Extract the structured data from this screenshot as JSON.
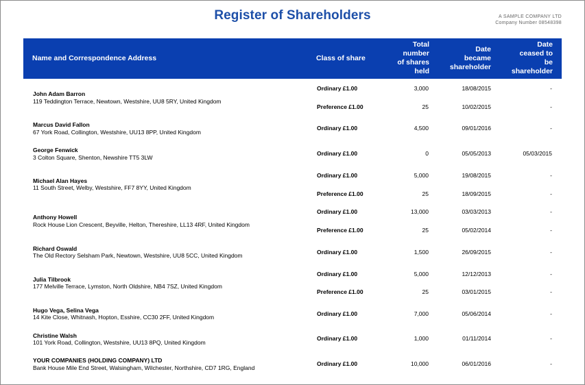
{
  "title": "Register of Shareholders",
  "company": {
    "name": "A SAMPLE COMPANY LTD",
    "number": "Company Number 08548398"
  },
  "columns": {
    "name": "Name and Correspondence Address",
    "class": "Class of share",
    "total": [
      "Total",
      "number",
      "of shares",
      "held"
    ],
    "became": [
      "Date",
      "became",
      "shareholder"
    ],
    "ceased": [
      "Date",
      "ceased to",
      "be",
      "shareholder"
    ]
  },
  "shareholders": [
    {
      "name": "John Adam Barron",
      "address": "119 Teddington Terrace, Newtown, Westshire, UU8 5RY, United Kingdom",
      "holdings": [
        {
          "class": "Ordinary £1.00",
          "total": "3,000",
          "became": "18/08/2015",
          "ceased": "-"
        },
        {
          "class": "Preference £1.00",
          "total": "25",
          "became": "10/02/2015",
          "ceased": "-"
        }
      ]
    },
    {
      "name": "Marcus David Fallon",
      "address": "67 York Road, Collington, Westshire, UU13 8PP, United Kingdom",
      "holdings": [
        {
          "class": "Ordinary £1.00",
          "total": "4,500",
          "became": "09/01/2016",
          "ceased": "-"
        }
      ]
    },
    {
      "name": "George Fenwick",
      "address": "3 Colton Square, Shenton, Newshire TT5 3LW",
      "holdings": [
        {
          "class": "Ordinary £1.00",
          "total": "0",
          "became": "05/05/2013",
          "ceased": "05/03/2015"
        }
      ]
    },
    {
      "name": "Michael Alan Hayes",
      "address": "11 South Street, Welby, Westshire, FF7 8YY, United Kingdom",
      "holdings": [
        {
          "class": "Ordinary £1.00",
          "total": "5,000",
          "became": "19/08/2015",
          "ceased": "-"
        },
        {
          "class": "Preference £1.00",
          "total": "25",
          "became": "18/09/2015",
          "ceased": "-"
        }
      ]
    },
    {
      "name": "Anthony Howell",
      "address": "Rock House Lion Crescent, Beyville, Helton, Thereshire, LL13 4RF, United Kingdom",
      "holdings": [
        {
          "class": "Ordinary £1.00",
          "total": "13,000",
          "became": "03/03/2013",
          "ceased": "-"
        },
        {
          "class": "Preference £1.00",
          "total": "25",
          "became": "05/02/2014",
          "ceased": "-"
        }
      ]
    },
    {
      "name": "Richard Oswald",
      "address": "The Old Rectory Selsham Park, Newtown, Westshire, UU8 5CC, United Kingdom",
      "holdings": [
        {
          "class": "Ordinary £1.00",
          "total": "1,500",
          "became": "26/09/2015",
          "ceased": "-"
        }
      ]
    },
    {
      "name": "Julia Tilbrook",
      "address": "177 Melville Terrace, Lymston, North Oldshire, NB4 7SZ, United Kingdom",
      "holdings": [
        {
          "class": "Ordinary £1.00",
          "total": "5,000",
          "became": "12/12/2013",
          "ceased": "-"
        },
        {
          "class": "Preference £1.00",
          "total": "25",
          "became": "03/01/2015",
          "ceased": "-"
        }
      ]
    },
    {
      "name": "Hugo Vega, Selina Vega",
      "address": "14 Kite Close, Whitnash, Hopton, Esshire, CC30 2FF, United Kingdom",
      "holdings": [
        {
          "class": "Ordinary £1.00",
          "total": "7,000",
          "became": "05/06/2014",
          "ceased": "-"
        }
      ]
    },
    {
      "name": "Christine Walsh",
      "address": "101 York Road, Collington, Westshire, UU13 8PQ, United Kingdom",
      "holdings": [
        {
          "class": "Ordinary £1.00",
          "total": "1,000",
          "became": "01/11/2014",
          "ceased": "-"
        }
      ]
    },
    {
      "name": "YOUR COMPANIES (HOLDING COMPANY) LTD",
      "address": "Bank House Mile End Street, Walsingham, Wilchester, Northshire, CD7 1RG, England",
      "holdings": [
        {
          "class": "Ordinary £1.00",
          "total": "10,000",
          "became": "06/01/2016",
          "ceased": "-"
        }
      ]
    }
  ]
}
